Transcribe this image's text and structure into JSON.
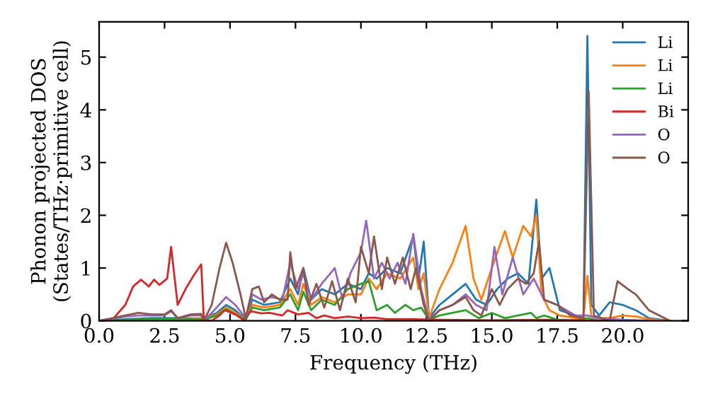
{
  "chart_data": {
    "type": "line",
    "xlabel": "Frequency (THz)",
    "ylabel": "Phonon projected DOS\n(States/THz·primitive cell)",
    "xlim": [
      0,
      22.5
    ],
    "ylim": [
      0,
      5.67
    ],
    "xticks": [
      {
        "value": 0,
        "label": "0.0"
      },
      {
        "value": 2.5,
        "label": "2.5"
      },
      {
        "value": 5,
        "label": "5.0"
      },
      {
        "value": 7.5,
        "label": "7.5"
      },
      {
        "value": 10,
        "label": "10.0"
      },
      {
        "value": 12.5,
        "label": "12.5"
      },
      {
        "value": 15,
        "label": "15.0"
      },
      {
        "value": 17.5,
        "label": "17.5"
      },
      {
        "value": 20,
        "label": "20.0"
      }
    ],
    "yticks": [
      0,
      1,
      2,
      3,
      4,
      5
    ],
    "legend": "top right",
    "grid": false,
    "series": [
      {
        "name": "Li",
        "color": "#1f77b4",
        "x": [
          0,
          1,
          2,
          3,
          4,
          4.5,
          4.85,
          5.2,
          5.6,
          5.85,
          6.3,
          6.9,
          7.3,
          7.6,
          7.8,
          8.1,
          8.5,
          9.0,
          9.5,
          10.0,
          10.3,
          10.6,
          11.0,
          11.5,
          12.0,
          12.2,
          12.4,
          12.6,
          13.0,
          13.5,
          14.0,
          14.4,
          14.8,
          15.2,
          15.6,
          16.0,
          16.4,
          16.7,
          16.9,
          17.2,
          17.6,
          18.2,
          18.5,
          18.65,
          18.8,
          19.1,
          19.5,
          20.0,
          20.5,
          21.0,
          21.8
        ],
        "values": [
          0,
          0.03,
          0.05,
          0.05,
          0.04,
          0.15,
          0.3,
          0.2,
          0.02,
          0.4,
          0.3,
          0.35,
          0.8,
          0.5,
          1.0,
          0.4,
          0.6,
          0.5,
          0.7,
          0.6,
          0.9,
          0.8,
          1.0,
          0.9,
          1.6,
          0.8,
          1.5,
          0.05,
          0.3,
          0.5,
          0.7,
          0.4,
          0.3,
          0.6,
          0.8,
          0.9,
          0.7,
          2.3,
          0.8,
          1.0,
          0.2,
          0.1,
          0.05,
          5.4,
          0.3,
          0.1,
          0.35,
          0.3,
          0.2,
          0.05,
          0
        ]
      },
      {
        "name": "Li",
        "color": "#ff7f0e",
        "x": [
          3,
          4,
          4.5,
          4.85,
          5.2,
          5.6,
          5.85,
          6.3,
          6.9,
          7.3,
          7.6,
          7.8,
          8.1,
          8.5,
          9.0,
          9.5,
          10.0,
          10.3,
          10.6,
          11.0,
          11.5,
          12.0,
          12.2,
          12.4,
          12.6,
          13.0,
          13.5,
          14.0,
          14.3,
          14.6,
          15.0,
          15.5,
          15.8,
          16.2,
          16.5,
          16.7,
          16.9,
          17.2,
          17.6,
          18.2,
          18.5,
          18.65,
          18.8,
          19.1,
          19.5,
          20.0,
          20.5,
          21.0,
          21.8
        ],
        "values": [
          0.04,
          0.03,
          0.12,
          0.25,
          0.15,
          0.02,
          0.3,
          0.25,
          0.3,
          0.6,
          0.3,
          0.7,
          0.3,
          0.45,
          0.35,
          0.5,
          0.5,
          0.8,
          0.6,
          0.9,
          0.8,
          1.2,
          0.6,
          0.9,
          0.05,
          0.6,
          1.1,
          1.8,
          0.8,
          0.4,
          1.0,
          1.7,
          1.2,
          1.8,
          1.6,
          2.0,
          0.5,
          0.2,
          0.1,
          0.05,
          0.05,
          0.85,
          0.1,
          0.05,
          0.05,
          0.1,
          0.08,
          0.03,
          0
        ]
      },
      {
        "name": "Li",
        "color": "#2ca02c",
        "x": [
          0,
          1,
          2,
          3,
          4,
          4.5,
          4.85,
          5.2,
          5.6,
          5.85,
          6.3,
          6.9,
          7.3,
          7.6,
          7.8,
          8.1,
          8.5,
          9.0,
          9.5,
          10.0,
          10.3,
          10.6,
          11.0,
          11.3,
          11.7,
          12.0,
          12.3,
          12.6,
          13.0,
          13.5,
          14.0,
          14.5,
          15.0,
          15.5,
          16.0,
          16.5,
          16.7,
          17.0,
          17.5,
          18.2,
          18.65,
          19.0,
          20.0,
          21.0
        ],
        "values": [
          0,
          0.02,
          0.03,
          0.03,
          0.02,
          0.1,
          0.22,
          0.12,
          0.02,
          0.25,
          0.2,
          0.25,
          0.5,
          0.2,
          0.55,
          0.2,
          0.4,
          0.3,
          0.6,
          0.7,
          0.75,
          0.2,
          0.3,
          0.15,
          0.3,
          0.2,
          0.25,
          0.02,
          0.1,
          0.15,
          0.2,
          0.05,
          0.15,
          0.05,
          0.1,
          0.15,
          0.05,
          0.1,
          0.02,
          0.01,
          0.05,
          0.01,
          0.01,
          0
        ]
      },
      {
        "name": "Bi",
        "color": "#d62728",
        "x": [
          0,
          0.5,
          1.0,
          1.3,
          1.6,
          1.9,
          2.1,
          2.3,
          2.6,
          2.75,
          3.0,
          3.3,
          3.6,
          3.9,
          4.0,
          4.3,
          4.6,
          4.8,
          5.2,
          5.5,
          5.8,
          6.2,
          6.5,
          7.0,
          7.2,
          7.6,
          8.0,
          8.3,
          8.6,
          9.0,
          9.5,
          10.0,
          10.5,
          11.0,
          12.0,
          13.0,
          15.0,
          17.0,
          18.0,
          20.0
        ],
        "values": [
          0,
          0.02,
          0.3,
          0.65,
          0.78,
          0.65,
          0.78,
          0.68,
          0.8,
          1.4,
          0.3,
          0.6,
          0.85,
          1.07,
          0.02,
          0,
          0.1,
          0.2,
          0.12,
          0.02,
          0.18,
          0.14,
          0.15,
          0.1,
          0.2,
          0.12,
          0.15,
          0.05,
          0.1,
          0.05,
          0.08,
          0.05,
          0.06,
          0.03,
          0.03,
          0.02,
          0.01,
          0.02,
          0.01,
          0
        ]
      },
      {
        "name": "O",
        "color": "#9467bd",
        "x": [
          0,
          1,
          1.5,
          2,
          2.5,
          2.75,
          3.0,
          3.5,
          3.9,
          4.0,
          4.4,
          4.85,
          5.2,
          5.6,
          5.85,
          6.2,
          6.6,
          7.0,
          7.3,
          7.6,
          7.8,
          8.1,
          8.5,
          9.0,
          9.3,
          9.6,
          10.0,
          10.2,
          10.5,
          10.8,
          11.1,
          11.4,
          11.7,
          12.0,
          12.3,
          12.6,
          13.0,
          13.5,
          14.0,
          14.4,
          14.8,
          15.1,
          15.4,
          15.8,
          16.2,
          16.6,
          17.0,
          17.5,
          18.2,
          18.65,
          19.0,
          20.0,
          21.0
        ],
        "values": [
          0,
          0.08,
          0.1,
          0.1,
          0.1,
          0.18,
          0.05,
          0.1,
          0.1,
          0,
          0.2,
          0.45,
          0.3,
          0.05,
          0.5,
          0.4,
          0.45,
          0.4,
          1.1,
          0.6,
          0.9,
          0.4,
          0.7,
          1.0,
          0.4,
          0.9,
          1.3,
          1.9,
          0.8,
          1.1,
          0.8,
          1.1,
          0.7,
          1.65,
          0.6,
          0.02,
          0.2,
          0.3,
          0.5,
          0.3,
          0.2,
          1.4,
          0.5,
          1.2,
          0.5,
          0.8,
          0.4,
          0.3,
          0.1,
          0.1,
          0.05,
          0.02,
          0
        ]
      },
      {
        "name": "O",
        "color": "#8c564b",
        "x": [
          0,
          1,
          1.5,
          2,
          2.5,
          2.75,
          3.0,
          3.5,
          3.9,
          4.0,
          4.3,
          4.6,
          4.85,
          5.1,
          5.4,
          5.6,
          5.85,
          6.1,
          6.3,
          6.6,
          6.9,
          7.2,
          7.3,
          7.5,
          7.8,
          8.0,
          8.3,
          8.6,
          8.9,
          9.2,
          9.5,
          9.8,
          10.0,
          10.3,
          10.5,
          10.8,
          11.0,
          11.3,
          11.6,
          11.9,
          12.1,
          12.4,
          12.6,
          13.0,
          13.5,
          14.0,
          14.3,
          14.6,
          15.0,
          15.3,
          15.6,
          16.0,
          16.3,
          16.6,
          16.8,
          17.0,
          17.5,
          18.0,
          18.5,
          18.7,
          18.9,
          19.5,
          19.8,
          20.2,
          20.5,
          21.0,
          21.8
        ],
        "values": [
          0,
          0.1,
          0.15,
          0.12,
          0.12,
          0.2,
          0.05,
          0.12,
          0.13,
          0,
          0.3,
          1.0,
          1.48,
          1.1,
          0.5,
          0.05,
          0.6,
          0.65,
          0.35,
          0.5,
          0.4,
          0.4,
          1.3,
          0.6,
          1.0,
          0.3,
          0.7,
          0.25,
          0.75,
          0.2,
          0.8,
          0.35,
          1.4,
          0.9,
          1.6,
          0.6,
          1.2,
          0.7,
          1.2,
          0.6,
          1.0,
          0.3,
          0,
          0.2,
          0.3,
          0.45,
          0.2,
          0.1,
          0.6,
          0.3,
          0.6,
          0.8,
          0.7,
          0.9,
          1.5,
          0.4,
          0.3,
          0.1,
          0.05,
          4.35,
          0.1,
          0,
          0.75,
          0.6,
          0.5,
          0.2,
          0
        ]
      }
    ]
  }
}
